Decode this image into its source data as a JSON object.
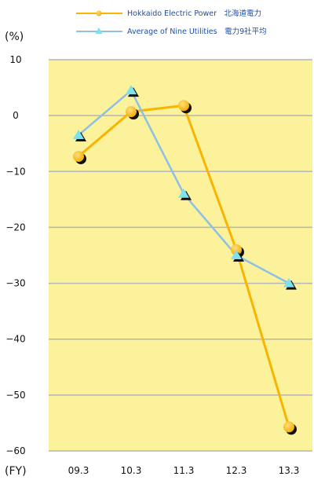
{
  "chart_data": {
    "type": "line",
    "categories": [
      "09.3",
      "10.3",
      "11.3",
      "12.3",
      "13.3"
    ],
    "ylabel": "(%)",
    "xlabel": "(FY)",
    "ylim": [
      -60,
      10
    ],
    "yticks": [
      "10",
      "0",
      "−10",
      "−20",
      "−30",
      "−40",
      "−50",
      "−60"
    ],
    "grid": true,
    "legend_position": "top",
    "plot_background": "#fbf29b",
    "series": [
      {
        "name": "Hokkaido Electric Power　北海道電力",
        "marker": "circle",
        "color": "#f8b400",
        "values": [
          -7.3,
          0.7,
          1.8,
          -24.0,
          -55.7
        ]
      },
      {
        "name": "Average of Nine Utilities　電力9社平均",
        "marker": "triangle",
        "color": "#8fbfe6",
        "values": [
          -3.5,
          4.5,
          -14.0,
          -25.0,
          -30.0
        ]
      }
    ]
  }
}
